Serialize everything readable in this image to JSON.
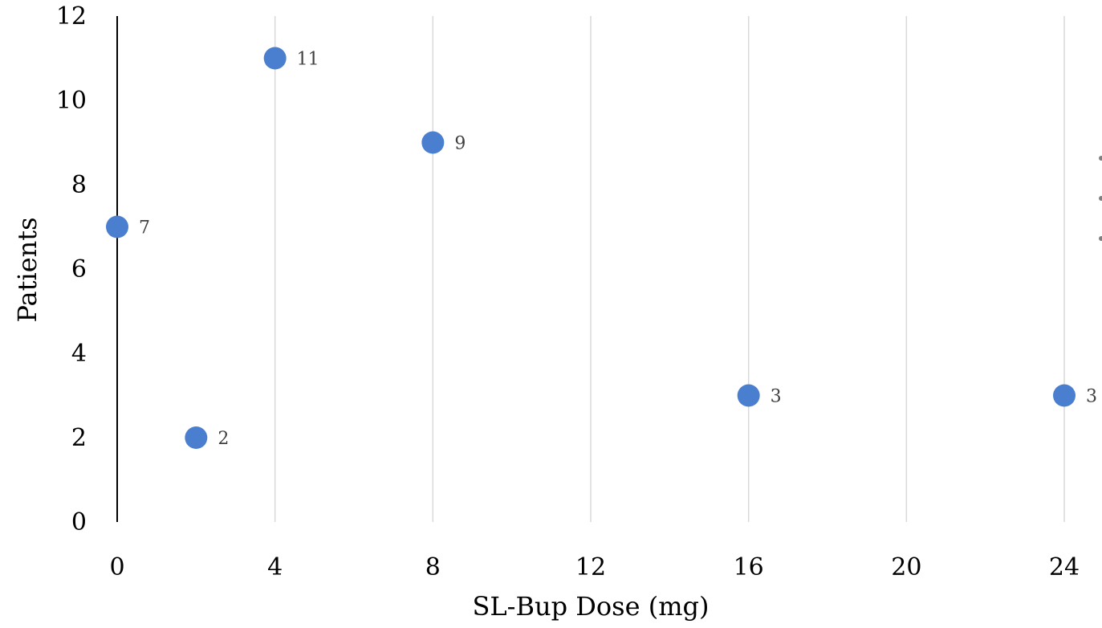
{
  "chart_data": {
    "type": "scatter",
    "xlabel": "SL-Bup Dose (mg)",
    "ylabel": "Patients",
    "xlim": [
      0,
      24
    ],
    "ylim": [
      0,
      12
    ],
    "xticks": [
      0,
      4,
      8,
      12,
      16,
      20,
      24
    ],
    "yticks": [
      0,
      2,
      4,
      6,
      8,
      10,
      12
    ],
    "xtick_labels": [
      "0",
      "4",
      "8",
      "12",
      "16",
      "20",
      "24"
    ],
    "ytick_labels": [
      "0",
      "2",
      "4",
      "6",
      "8",
      "10",
      "12"
    ],
    "grid": "vertical",
    "legend": "right (clipped)",
    "series": [
      {
        "points": [
          {
            "x": 0,
            "y": 7,
            "label": "7"
          },
          {
            "x": 2,
            "y": 2,
            "label": "2"
          },
          {
            "x": 4,
            "y": 11,
            "label": "11"
          },
          {
            "x": 8,
            "y": 9,
            "label": "9"
          },
          {
            "x": 16,
            "y": 3,
            "label": "3"
          },
          {
            "x": 24,
            "y": 3,
            "label": "3"
          }
        ]
      }
    ],
    "legend_entries": [
      "",
      "",
      ""
    ],
    "colors": {
      "marker": "#4a7fd0",
      "grid": "#d9d9d9",
      "axis": "#000000",
      "legend_dot": "#808080"
    }
  }
}
